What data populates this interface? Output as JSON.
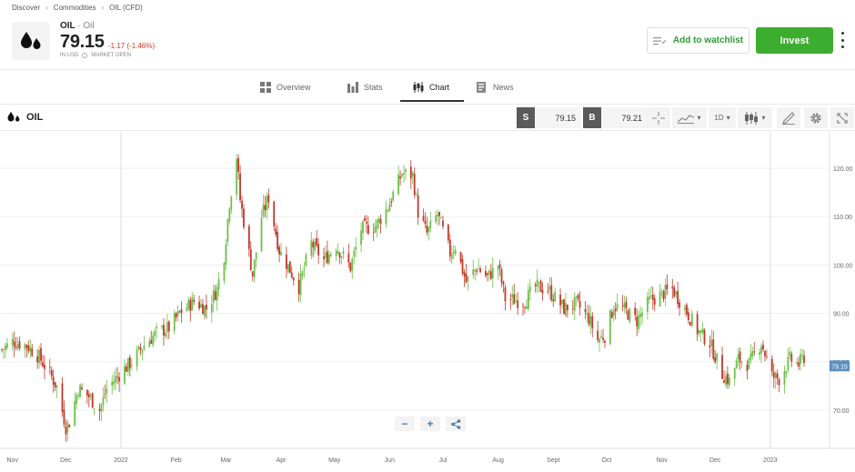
{
  "breadcrumb": [
    "Discover",
    "Commodities",
    "OIL (CFD)"
  ],
  "asset": {
    "symbol": "OIL",
    "name": "Oil",
    "price": "79.15",
    "change": "-1.17 (-1.46%)",
    "currency": "IN USD",
    "market_status": "MARKET OPEN"
  },
  "actions": {
    "watchlist": "Add to watchlist",
    "invest": "Invest"
  },
  "tabs": [
    {
      "label": "Overview",
      "icon": "grid-icon"
    },
    {
      "label": "Stats",
      "icon": "bar-stats-icon"
    },
    {
      "label": "Chart",
      "icon": "candlestick-icon",
      "active": true
    },
    {
      "label": "News",
      "icon": "news-icon"
    }
  ],
  "toolbar": {
    "symbol": "OIL",
    "sell_label": "S",
    "sell_price": "79.15",
    "buy_label": "B",
    "buy_price": "79.21",
    "interval": "1D"
  },
  "colors": {
    "up": "#6fbf4a",
    "down": "#c0392b",
    "accent": "#3dad2f",
    "price_tag": "#5b8fbf"
  },
  "chart_data": {
    "type": "candlestick",
    "ylim": [
      62,
      128
    ],
    "yticks": [
      "70.00",
      "80.00",
      "90.00",
      "100.00",
      "110.00",
      "120.00"
    ],
    "xticks": [
      "Nov",
      "Dec",
      "2022",
      "Feb",
      "Mar",
      "Apr",
      "May",
      "Jun",
      "Jul",
      "Aug",
      "Sept",
      "Oct",
      "Nov",
      "Dec",
      "2023"
    ],
    "last_price_label": "79.15",
    "path": [
      [
        "2021-10-26",
        82.5
      ],
      [
        "2021-11-01",
        84.2
      ],
      [
        "2021-11-09",
        83.4
      ],
      [
        "2021-11-16",
        81.0
      ],
      [
        "2021-11-22",
        77.5
      ],
      [
        "2021-11-26",
        74.8
      ],
      [
        "2021-12-01",
        66.5
      ],
      [
        "2021-12-03",
        67.5
      ],
      [
        "2021-12-08",
        74.5
      ],
      [
        "2021-12-14",
        72.8
      ],
      [
        "2021-12-20",
        70.0
      ],
      [
        "2021-12-24",
        74.5
      ],
      [
        "2022-01-01",
        77.8
      ],
      [
        "2022-01-07",
        80.0
      ],
      [
        "2022-01-14",
        83.5
      ],
      [
        "2022-01-21",
        86.0
      ],
      [
        "2022-01-28",
        87.0
      ],
      [
        "2022-02-04",
        90.5
      ],
      [
        "2022-02-11",
        92.5
      ],
      [
        "2022-02-18",
        91.0
      ],
      [
        "2022-02-24",
        95.0
      ],
      [
        "2022-02-28",
        102.0
      ],
      [
        "2022-03-03",
        113.0
      ],
      [
        "2022-03-07",
        122.5
      ],
      [
        "2022-03-09",
        113.5
      ],
      [
        "2022-03-16",
        98.0
      ],
      [
        "2022-03-21",
        110.0
      ],
      [
        "2022-03-25",
        114.0
      ],
      [
        "2022-03-31",
        103.0
      ],
      [
        "2022-04-06",
        99.0
      ],
      [
        "2022-04-11",
        95.5
      ],
      [
        "2022-04-18",
        104.5
      ],
      [
        "2022-04-25",
        101.0
      ],
      [
        "2022-05-02",
        104.0
      ],
      [
        "2022-05-10",
        99.5
      ],
      [
        "2022-05-16",
        107.5
      ],
      [
        "2022-05-24",
        108.0
      ],
      [
        "2022-05-31",
        112.0
      ],
      [
        "2022-06-08",
        119.0
      ],
      [
        "2022-06-14",
        118.5
      ],
      [
        "2022-06-17",
        111.0
      ],
      [
        "2022-06-22",
        106.5
      ],
      [
        "2022-06-28",
        110.5
      ],
      [
        "2022-07-05",
        102.5
      ],
      [
        "2022-07-08",
        104.0
      ],
      [
        "2022-07-14",
        96.5
      ],
      [
        "2022-07-20",
        99.5
      ],
      [
        "2022-07-26",
        97.5
      ],
      [
        "2022-08-01",
        100.0
      ],
      [
        "2022-08-05",
        93.0
      ],
      [
        "2022-08-16",
        92.5
      ],
      [
        "2022-08-22",
        95.5
      ],
      [
        "2022-08-29",
        95.0
      ],
      [
        "2022-09-07",
        91.0
      ],
      [
        "2022-09-14",
        92.0
      ],
      [
        "2022-09-21",
        89.0
      ],
      [
        "2022-09-26",
        84.5
      ],
      [
        "2022-09-30",
        85.5
      ],
      [
        "2022-10-05",
        91.5
      ],
      [
        "2022-10-10",
        91.0
      ],
      [
        "2022-10-18",
        88.5
      ],
      [
        "2022-10-25",
        92.5
      ],
      [
        "2022-11-01",
        94.0
      ],
      [
        "2022-11-07",
        95.0
      ],
      [
        "2022-11-14",
        91.0
      ],
      [
        "2022-11-21",
        86.5
      ],
      [
        "2022-11-28",
        84.0
      ],
      [
        "2022-12-05",
        77.5
      ],
      [
        "2022-12-09",
        76.0
      ],
      [
        "2022-12-14",
        80.5
      ],
      [
        "2022-12-20",
        79.5
      ],
      [
        "2022-12-27",
        84.0
      ],
      [
        "2023-01-02",
        77.0
      ],
      [
        "2023-01-06",
        76.5
      ],
      [
        "2023-01-12",
        80.5
      ],
      [
        "2023-01-17",
        79.5
      ],
      [
        "2023-01-20",
        81.0
      ]
    ]
  }
}
